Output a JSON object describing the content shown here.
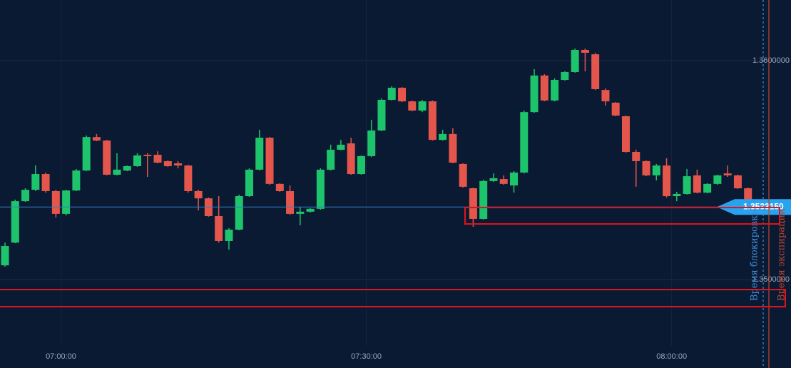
{
  "chart_data": {
    "type": "candlestick",
    "up_color": "#1ec46b",
    "down_color": "#e4564c",
    "ylim": [
      1.34596,
      1.36277
    ],
    "yticks": [
      {
        "value": 1.35,
        "label": "1.3500000"
      },
      {
        "value": 1.36,
        "label": "1.3600000"
      }
    ],
    "grid": true,
    "last_price": {
      "value": 1.353315,
      "label": "1.3533150"
    },
    "markers": [
      {
        "label": "Время блокировки",
        "color": "#3d8fd6"
      },
      {
        "label": "Время экспирации",
        "color": "#c0452e"
      }
    ],
    "categories": [
      null,
      null,
      null,
      null,
      null,
      null,
      "07:00:00",
      null,
      null,
      null,
      null,
      null,
      null,
      null,
      null,
      null,
      null,
      null,
      null,
      null,
      null,
      null,
      null,
      null,
      null,
      null,
      null,
      null,
      null,
      null,
      null,
      null,
      null,
      null,
      null,
      null,
      "07:30:00",
      null,
      null,
      null,
      null,
      null,
      null,
      null,
      null,
      null,
      null,
      null,
      null,
      null,
      null,
      null,
      null,
      null,
      null,
      null,
      null,
      null,
      null,
      null,
      null,
      null,
      null,
      null,
      null,
      null,
      "08:00:00",
      null,
      null,
      null,
      null,
      null,
      null,
      null
    ],
    "open": [
      1.35065,
      1.35169,
      1.35358,
      1.3541,
      1.35482,
      1.35404,
      1.353,
      1.35407,
      1.35498,
      1.35651,
      1.35635,
      1.35479,
      1.35498,
      1.35518,
      1.3557,
      1.3557,
      1.35541,
      1.35531,
      1.35521,
      1.35404,
      1.35371,
      1.3529,
      1.35176,
      1.35228,
      1.35381,
      1.35502,
      1.35648,
      1.35437,
      1.35404,
      1.353,
      1.3531,
      1.35323,
      1.35502,
      1.35593,
      1.35622,
      1.35482,
      1.35564,
      1.35681,
      1.35821,
      1.35876,
      1.35814,
      1.35772,
      1.35814,
      1.35638,
      1.35665,
      1.35528,
      1.35417,
      1.35277,
      1.3545,
      1.35459,
      1.3543,
      1.35489,
      1.35765,
      1.35932,
      1.35818,
      1.35912,
      1.35948,
      1.36049,
      1.36029,
      1.35866,
      1.35808,
      1.35746,
      1.35583,
      1.35541,
      1.35476,
      1.35521,
      1.35381,
      1.35391,
      1.35476,
      1.35397,
      1.35437,
      1.35485,
      1.35476,
      1.35417
    ],
    "high": [
      1.35169,
      1.35365,
      1.35417,
      1.35521,
      1.35489,
      1.3541,
      1.3541,
      1.35505,
      1.35658,
      1.35665,
      1.35638,
      1.35577,
      1.35521,
      1.35577,
      1.35577,
      1.35586,
      1.35544,
      1.35541,
      1.35524,
      1.3541,
      1.35375,
      1.35381,
      1.35235,
      1.35388,
      1.35508,
      1.35684,
      1.35651,
      1.3544,
      1.3543,
      1.35332,
      1.35326,
      1.35508,
      1.35616,
      1.35638,
      1.35648,
      1.35567,
      1.3573,
      1.35827,
      1.35883,
      1.35879,
      1.35818,
      1.35821,
      1.35818,
      1.35684,
      1.35691,
      1.35531,
      1.3542,
      1.35456,
      1.35485,
      1.35476,
      1.35495,
      1.35772,
      1.35961,
      1.35938,
      1.35919,
      1.35951,
      1.36055,
      1.36055,
      1.36036,
      1.35873,
      1.35811,
      1.35749,
      1.35593,
      1.35544,
      1.35528,
      1.35554,
      1.35401,
      1.35505,
      1.35502,
      1.3544,
      1.35479,
      1.35521,
      1.35479,
      1.3542
    ],
    "low": [
      1.35059,
      1.35166,
      1.35355,
      1.35404,
      1.35397,
      1.35283,
      1.35293,
      1.35404,
      1.35495,
      1.35632,
      1.35476,
      1.35476,
      1.35495,
      1.35515,
      1.35469,
      1.35531,
      1.35515,
      1.35508,
      1.35397,
      1.35316,
      1.35287,
      1.35169,
      1.35137,
      1.35225,
      1.35378,
      1.35498,
      1.35433,
      1.35401,
      1.35296,
      1.35248,
      1.35306,
      1.35319,
      1.35498,
      1.3559,
      1.35479,
      1.35479,
      1.3556,
      1.35678,
      1.35818,
      1.35811,
      1.35769,
      1.35765,
      1.35635,
      1.35635,
      1.35531,
      1.3542,
      1.35241,
      1.35274,
      1.35446,
      1.35433,
      1.35397,
      1.35485,
      1.35762,
      1.35814,
      1.35814,
      1.35909,
      1.35945,
      1.35951,
      1.35866,
      1.35795,
      1.35746,
      1.3558,
      1.35424,
      1.35472,
      1.35453,
      1.35375,
      1.35358,
      1.35388,
      1.35394,
      1.35394,
      1.35433,
      1.35469,
      1.35414,
      1.35329
    ],
    "close": [
      1.35153,
      1.35358,
      1.3541,
      1.35482,
      1.35404,
      1.353,
      1.35407,
      1.35498,
      1.35651,
      1.35635,
      1.35479,
      1.35502,
      1.35518,
      1.35567,
      1.35564,
      1.35534,
      1.35518,
      1.35521,
      1.35404,
      1.35371,
      1.3529,
      1.35176,
      1.35228,
      1.35381,
      1.35502,
      1.35648,
      1.35437,
      1.35404,
      1.353,
      1.3531,
      1.35323,
      1.35502,
      1.35593,
      1.35616,
      1.35482,
      1.35564,
      1.35681,
      1.35821,
      1.35876,
      1.35814,
      1.35772,
      1.35814,
      1.35638,
      1.35665,
      1.35534,
      1.35424,
      1.35277,
      1.3545,
      1.35463,
      1.35437,
      1.35489,
      1.35765,
      1.35932,
      1.35818,
      1.35912,
      1.35948,
      1.36049,
      1.36036,
      1.3587,
      1.35814,
      1.35749,
      1.35583,
      1.35541,
      1.35476,
      1.35521,
      1.35381,
      1.35391,
      1.35472,
      1.35397,
      1.35437,
      1.35476,
      1.35476,
      1.35417,
      1.35332
    ]
  }
}
